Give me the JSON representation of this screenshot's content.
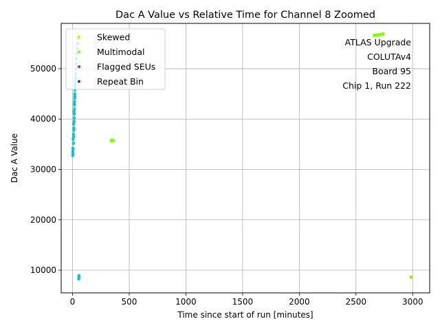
{
  "chart_data": {
    "type": "scatter",
    "title": "Dac A Value vs Relative Time for Channel 8 Zoomed",
    "xlabel": "Time since start of run [minutes]",
    "ylabel": "Dac A Value",
    "xlim": [
      -100,
      3150
    ],
    "ylim": [
      5500,
      59000
    ],
    "xticks": [
      0,
      500,
      1000,
      1500,
      2000,
      2500,
      3000
    ],
    "yticks": [
      10000,
      20000,
      30000,
      40000,
      50000
    ],
    "grid": true,
    "legend_position": "top-left",
    "annotation": [
      "ATLAS Upgrade",
      "COLUTAv4",
      "Board 95",
      "Chip 1, Run 222"
    ],
    "series": [
      {
        "name": "Normal",
        "color": "#17becf",
        "in_legend": false,
        "points": [
          [
            2,
            32800
          ],
          [
            2,
            33500
          ],
          [
            3,
            34200
          ],
          [
            4,
            33000
          ],
          [
            5,
            34000
          ],
          [
            8,
            35200
          ],
          [
            10,
            36500
          ],
          [
            12,
            37800
          ],
          [
            12,
            38200
          ],
          [
            14,
            39500
          ],
          [
            15,
            40200
          ],
          [
            16,
            41000
          ],
          [
            17,
            42000
          ],
          [
            18,
            42800
          ],
          [
            18,
            43500
          ],
          [
            19,
            44200
          ],
          [
            20,
            45000
          ],
          [
            21,
            45800
          ],
          [
            22,
            46300
          ],
          [
            23,
            46800
          ],
          [
            24,
            47500
          ],
          [
            26,
            48200
          ],
          [
            28,
            49000
          ],
          [
            30,
            50000
          ],
          [
            32,
            51000
          ],
          [
            35,
            52000
          ],
          [
            38,
            53000
          ],
          [
            42,
            54000
          ],
          [
            45,
            55000
          ],
          [
            48,
            56000
          ],
          [
            50,
            56500
          ],
          [
            5,
            36000
          ],
          [
            8,
            37000
          ],
          [
            10,
            39000
          ],
          [
            13,
            41500
          ],
          [
            16,
            43000
          ],
          [
            20,
            44500
          ],
          [
            55,
            8300
          ],
          [
            56,
            8600
          ],
          [
            57,
            8900
          ],
          [
            55,
            8500
          ]
        ]
      },
      {
        "name": "Skewed",
        "color": "#e6e600",
        "in_legend": true,
        "points": [
          [
            48,
            56800
          ],
          [
            52,
            57000
          ]
        ]
      },
      {
        "name": "Multimodal",
        "color": "#7fff00",
        "in_legend": true,
        "points": [
          [
            340,
            35700
          ],
          [
            350,
            35800
          ],
          [
            360,
            35700
          ],
          [
            2660,
            56600
          ],
          [
            2680,
            56700
          ],
          [
            2700,
            56700
          ],
          [
            2720,
            56800
          ],
          [
            2740,
            56900
          ],
          [
            2985,
            8600
          ]
        ]
      },
      {
        "name": "Flagged SEUs",
        "color": "#d62728",
        "in_legend": true,
        "points": []
      },
      {
        "name": "Repeat Bin",
        "color": "#5b1a8a",
        "in_legend": true,
        "points": []
      }
    ]
  }
}
